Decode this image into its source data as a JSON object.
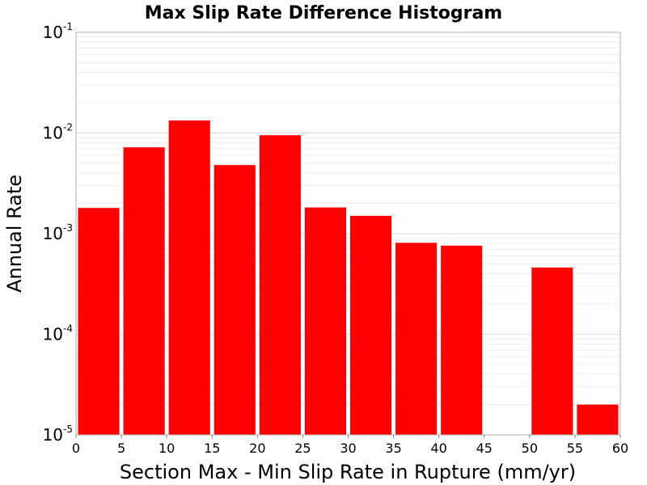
{
  "chart_data": {
    "type": "bar",
    "title": "Max Slip Rate Difference Histogram",
    "xlabel": "Section Max - Min Slip Rate in Rupture (mm/yr)",
    "ylabel": "Annual Rate",
    "x_bin_edges": [
      0,
      5,
      10,
      15,
      20,
      25,
      30,
      35,
      40,
      45,
      50,
      55,
      60
    ],
    "xlim": [
      0,
      60
    ],
    "xticks": [
      "0",
      "5",
      "10",
      "15",
      "20",
      "25",
      "30",
      "35",
      "40",
      "45",
      "50",
      "55",
      "60"
    ],
    "ylim": [
      1e-05,
      0.1
    ],
    "y_scale": "log",
    "yticks": [
      {
        "base": "10",
        "exp": "-5",
        "value": 1e-05
      },
      {
        "base": "10",
        "exp": "-4",
        "value": 0.0001
      },
      {
        "base": "10",
        "exp": "-3",
        "value": 0.001
      },
      {
        "base": "10",
        "exp": "-2",
        "value": 0.01
      },
      {
        "base": "10",
        "exp": "-1",
        "value": 0.1
      }
    ],
    "values": [
      0.0018,
      0.0072,
      0.0133,
      0.0048,
      0.0095,
      0.00182,
      0.0015,
      0.00081,
      0.00076,
      null,
      0.00046,
      2e-05
    ],
    "bar_color": "#ff0000",
    "grid": true,
    "legend": "none"
  }
}
